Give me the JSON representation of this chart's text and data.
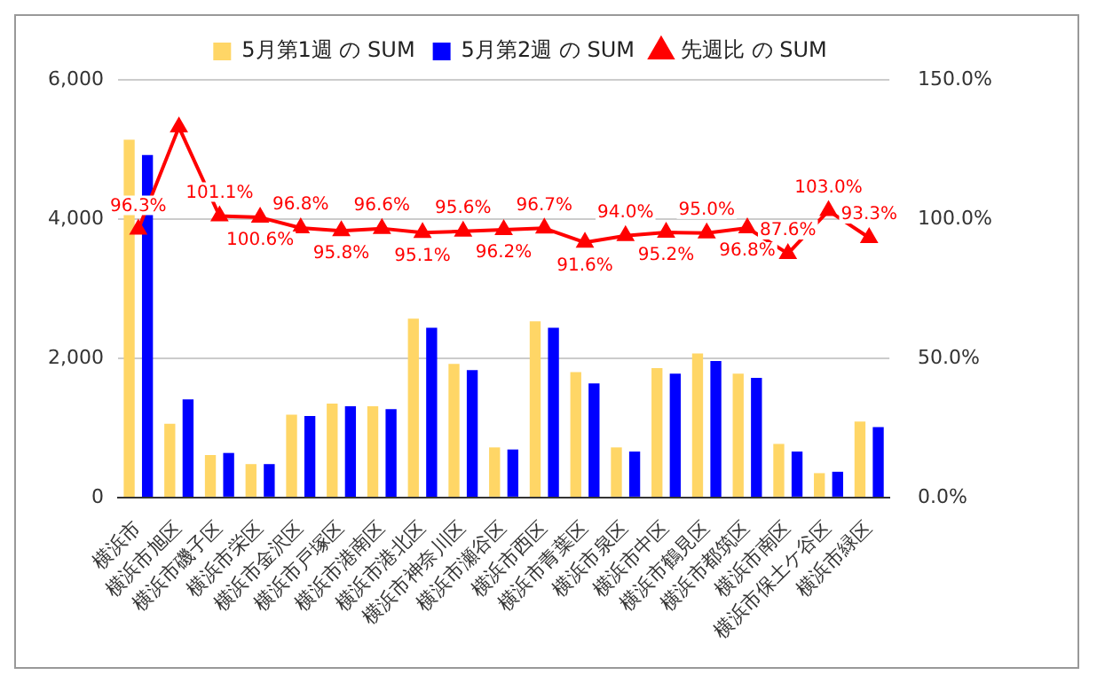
{
  "chart_data": {
    "type": "bar",
    "categories": [
      "横浜市",
      "横浜市旭区",
      "横浜市磯子区",
      "横浜市栄区",
      "横浜市金沢区",
      "横浜市戸塚区",
      "横浜市港南区",
      "横浜市港北区",
      "横浜市神奈川区",
      "横浜市瀬谷区",
      "横浜市西区",
      "横浜市青葉区",
      "横浜市泉区",
      "横浜市中区",
      "横浜市鶴見区",
      "横浜市都筑区",
      "横浜市南区",
      "横浜市保土ケ谷区",
      "横浜市緑区"
    ],
    "series": [
      {
        "name": "5月第1週 の SUM",
        "color": "#ffd666",
        "type": "bar",
        "values": [
          5140,
          1060,
          610,
          480,
          1190,
          1350,
          1310,
          2570,
          1920,
          720,
          2530,
          1800,
          720,
          1860,
          2070,
          1780,
          770,
          350,
          1090
        ]
      },
      {
        "name": "5月第2週 の SUM",
        "color": "#0000ff",
        "type": "bar",
        "values": [
          4920,
          1410,
          640,
          480,
          1170,
          1310,
          1270,
          2440,
          1830,
          690,
          2440,
          1640,
          660,
          1780,
          1960,
          1720,
          660,
          370,
          1010
        ]
      },
      {
        "name": "先週比 の SUM",
        "color": "#ff0000",
        "type": "line",
        "axis": "y2",
        "values": [
          96.3,
          133.0,
          101.1,
          100.6,
          96.8,
          95.8,
          96.6,
          95.1,
          95.6,
          96.2,
          96.7,
          91.6,
          94.0,
          95.2,
          95.0,
          96.8,
          87.6,
          103.0,
          93.3
        ],
        "value_labels": [
          "96.3%",
          null,
          "101.1%",
          "100.6%",
          "96.8%",
          "95.8%",
          "96.6%",
          "95.1%",
          "95.6%",
          "96.2%",
          "96.7%",
          "91.6%",
          "94.0%",
          "95.2%",
          "95.0%",
          "96.8%",
          "87.6%",
          "103.0%",
          "93.3%"
        ]
      }
    ],
    "ylim": [
      0,
      6000
    ],
    "yticks": [
      {
        "value": 0,
        "label": "0"
      },
      {
        "value": 2000,
        "label": "2,000"
      },
      {
        "value": 4000,
        "label": "4,000"
      },
      {
        "value": 6000,
        "label": "6,000"
      }
    ],
    "y2lim": [
      0,
      150
    ],
    "y2ticks": [
      {
        "value": 0,
        "label": "0.0%"
      },
      {
        "value": 50,
        "label": "50.0%"
      },
      {
        "value": 100,
        "label": "100.0%"
      },
      {
        "value": 150,
        "label": "150.0%"
      }
    ],
    "grid": "y",
    "legend": "top",
    "marker": "triangle",
    "line_style": "solid"
  }
}
